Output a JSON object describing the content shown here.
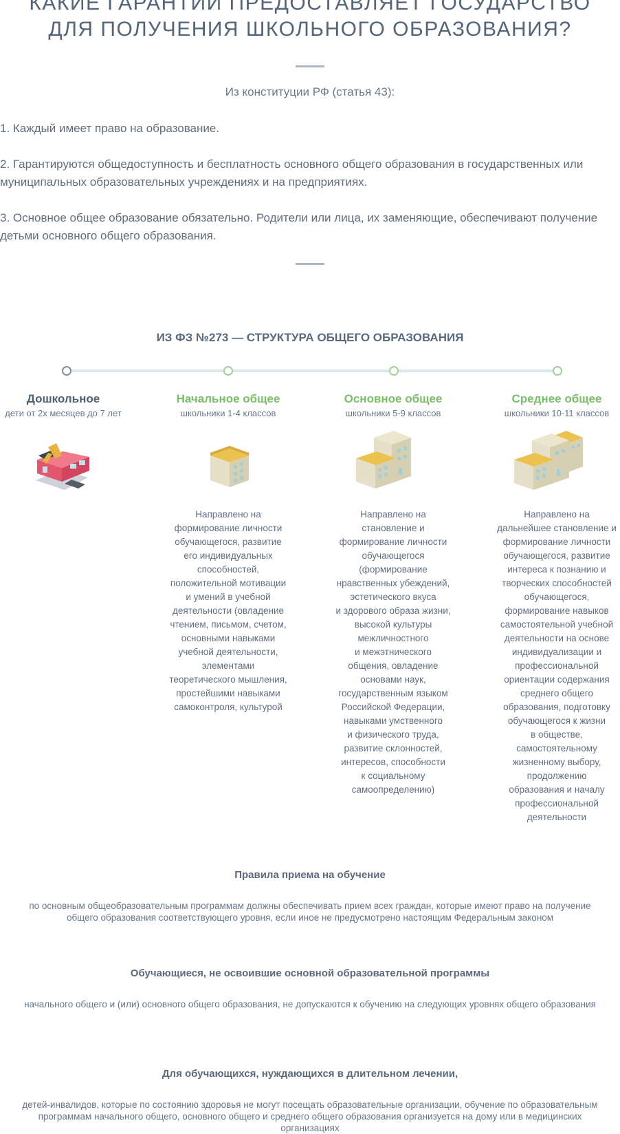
{
  "header": {
    "title": "КАКИЕ ГАРАНТИИ ПРЕДОСТАВЛЯЕТ ГОСУДАРСТВО\nДЛЯ ПОЛУЧЕНИЯ ШКОЛЬНОГО ОБРАЗОВАНИЯ?",
    "intro": "Из конституции РФ (статья 43):"
  },
  "constitution": {
    "points": [
      "1. Каждый имеет право на образование.",
      "2. Гарантируются общедоступность и бесплатность основного общего образования в государственных или муниципальных образовательных учреждениях и на предприятиях.",
      "3. Основное общее образование обязательно. Родители или лица, их заменяющие, обеспечивают получение детьми основного общего образования."
    ]
  },
  "structure": {
    "title": "ИЗ ФЗ №273 — СТРУКТУРА ОБЩЕГО ОБРАЗОВАНИЯ",
    "columns": [
      {
        "name": "Дошкольное",
        "sub": "дети от 2х месяцев до 7 лет",
        "color": "#4f6072",
        "icon": "kindergarten-icon",
        "desc": ""
      },
      {
        "name": "Начальное общее",
        "sub": "школьники 1-4 классов",
        "color": "#7bbd68",
        "icon": "small-school-icon",
        "desc": "Направлено на\nформирование личности\nобучающегося, развитие\nего индивидуальных\nспособностей,\nположительной мотивации\nи умений в учебной\nдеятельности (овладение\nчтением, письмом, счетом,\nосновными навыками\nучебной деятельности,\nэлементами\nтеоретического мышления,\nпростейшими навыками\nсамоконтроля, культурой"
      },
      {
        "name": "Основное общее",
        "sub": "школьники 5-9 классов",
        "color": "#7bbd68",
        "icon": "medium-school-icon",
        "desc": "Направлено на\nстановление и\nформирование личности\nобучающегося\n(формирование\nнравственных убеждений,\nэстетического вкуса\nи здорового образа жизни,\nвысокой культуры\nмежличностного\nи межэтнического\nобщения, овладение\nосновами наук,\nгосударственным языком\nРоссийской Федерации,\nнавыками умственного\nи физического труда,\nразвитие склонностей,\nинтересов, способности\nк социальному\nсамоопределению)"
      },
      {
        "name": "Среднее общее",
        "sub": "школьники 10-11 классов",
        "color": "#7bbd68",
        "icon": "large-school-icon",
        "desc": "Направлено на\nдальнейшее становление и\nформирование личности\nобучающегося, развитие\nинтереса к познанию и\nтворческих способностей\nобучающегося,\nформирование навыков\nсамостоятельной учебной\nдеятельности на основе\nиндивидуализации и\nпрофессиональной\nориентации содержания\nсреднего общего\nобразования, подготовку\nобучающегося к жизни\nв обществе,\nсамостоятельному\nжизненному выбору,\nпродолжению\nобразования и началу\nпрофессиональной\nдеятельности"
      }
    ]
  },
  "rules": [
    {
      "heading": "Правила приема на обучение",
      "text": "по основным общеобразовательным программам должны обеспечивать прием всех граждан, которые имеют право на получение общего образования соответствующего уровня, если иное не предусмотрено настоящим Федеральным законом"
    },
    {
      "heading": "Обучающиеся, не освоившие основной образовательной программы",
      "text": "начального общего и (или) основного общего образования, не допускаются к обучению на следующих уровнях общего образования"
    },
    {
      "heading": "Для обучающихся, нуждающихся в длительном лечении,",
      "text": "детей-инвалидов, которые по состоянию здоровья не могут посещать образовательные организации, обучение по образовательным программам начального общего, основного общего и среднего общего образования организуется на дому или в медицинских организациях"
    }
  ],
  "colors": {
    "heading": "#536579",
    "accent_green": "#7bbd68",
    "timeline": "#dbe6ec"
  }
}
